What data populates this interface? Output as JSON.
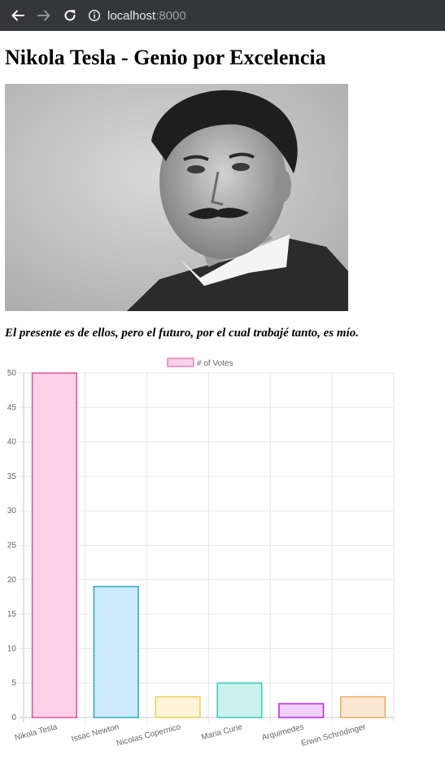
{
  "browser": {
    "url_host": "localhost",
    "url_port": ":8000"
  },
  "page": {
    "title": "Nikola Tesla - Genio por Excelencia",
    "quote": "El presente es de ellos, pero el futuro, por el cual trabajé tanto, es mío."
  },
  "chart_data": {
    "type": "bar",
    "categories": [
      "Nikola Tesla",
      "Issac Newton",
      "Nicolas Copernico",
      "Maria Curie",
      "Arquimedes",
      "Erwin Schrödinger"
    ],
    "series": [
      {
        "name": "# of Votes",
        "values": [
          50,
          19,
          3,
          5,
          2,
          3
        ]
      }
    ],
    "ylim": [
      0,
      50
    ],
    "yticks": [
      0,
      5,
      10,
      15,
      20,
      25,
      30,
      35,
      40,
      45,
      50
    ],
    "legend": "top-center",
    "grid": true,
    "colors": {
      "fill": [
        "#ffd1e8",
        "#cdeafc",
        "#fff3d9",
        "#caf3ee",
        "#efd0fb",
        "#ffe8d3"
      ],
      "stroke": [
        "#e0529c",
        "#2aa6c4",
        "#f0cd5a",
        "#3cc9bf",
        "#b424e0",
        "#f2a75b"
      ],
      "legend_fill": "#ffd1e8",
      "legend_stroke": "#e0529c"
    }
  }
}
